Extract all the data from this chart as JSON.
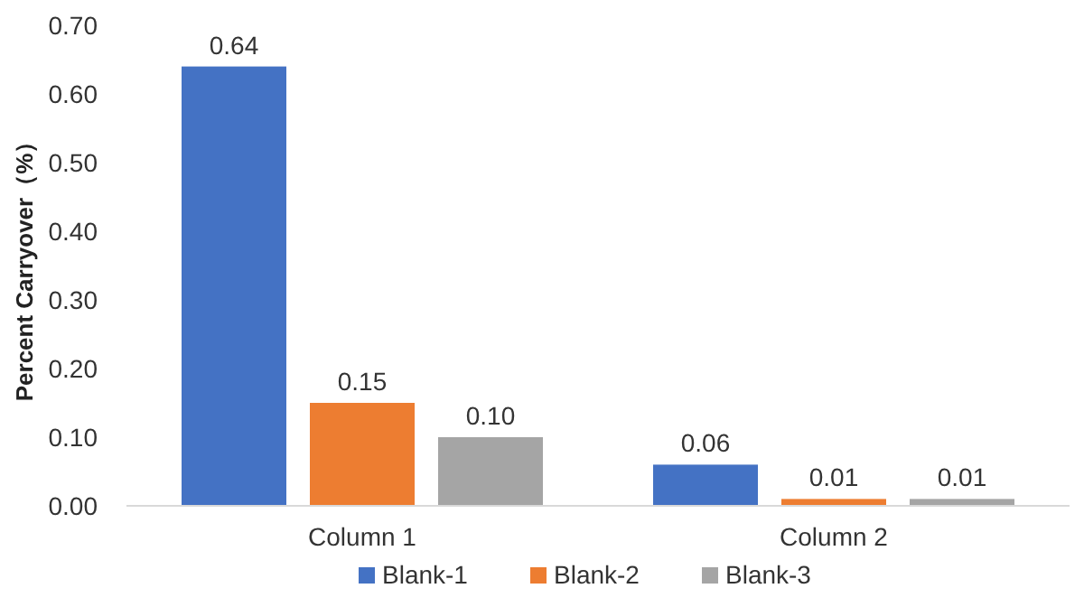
{
  "chart_data": {
    "type": "bar",
    "ylabel": "Percent Carryover（%）",
    "categories": [
      "Column 1",
      "Column 2"
    ],
    "series": [
      {
        "name": "Blank-1",
        "color": "#4472c4",
        "values": [
          0.64,
          0.06
        ],
        "value_labels": [
          "0.64",
          "0.06"
        ]
      },
      {
        "name": "Blank-2",
        "color": "#ed7d31",
        "values": [
          0.15,
          0.01
        ],
        "value_labels": [
          "0.15",
          "0.01"
        ]
      },
      {
        "name": "Blank-3",
        "color": "#a5a5a5",
        "values": [
          0.1,
          0.01
        ],
        "value_labels": [
          "0.10",
          "0.01"
        ]
      }
    ],
    "ylim": [
      0,
      0.7
    ],
    "yticks": [
      {
        "value": 0,
        "label": "0.00"
      },
      {
        "value": 0.1,
        "label": "0.10"
      },
      {
        "value": 0.2,
        "label": "0.20"
      },
      {
        "value": 0.3,
        "label": "0.30"
      },
      {
        "value": 0.4,
        "label": "0.40"
      },
      {
        "value": 0.5,
        "label": "0.50"
      },
      {
        "value": 0.6,
        "label": "0.60"
      },
      {
        "value": 0.7,
        "label": "0.70"
      }
    ],
    "grid": false,
    "legend": "bottom"
  }
}
